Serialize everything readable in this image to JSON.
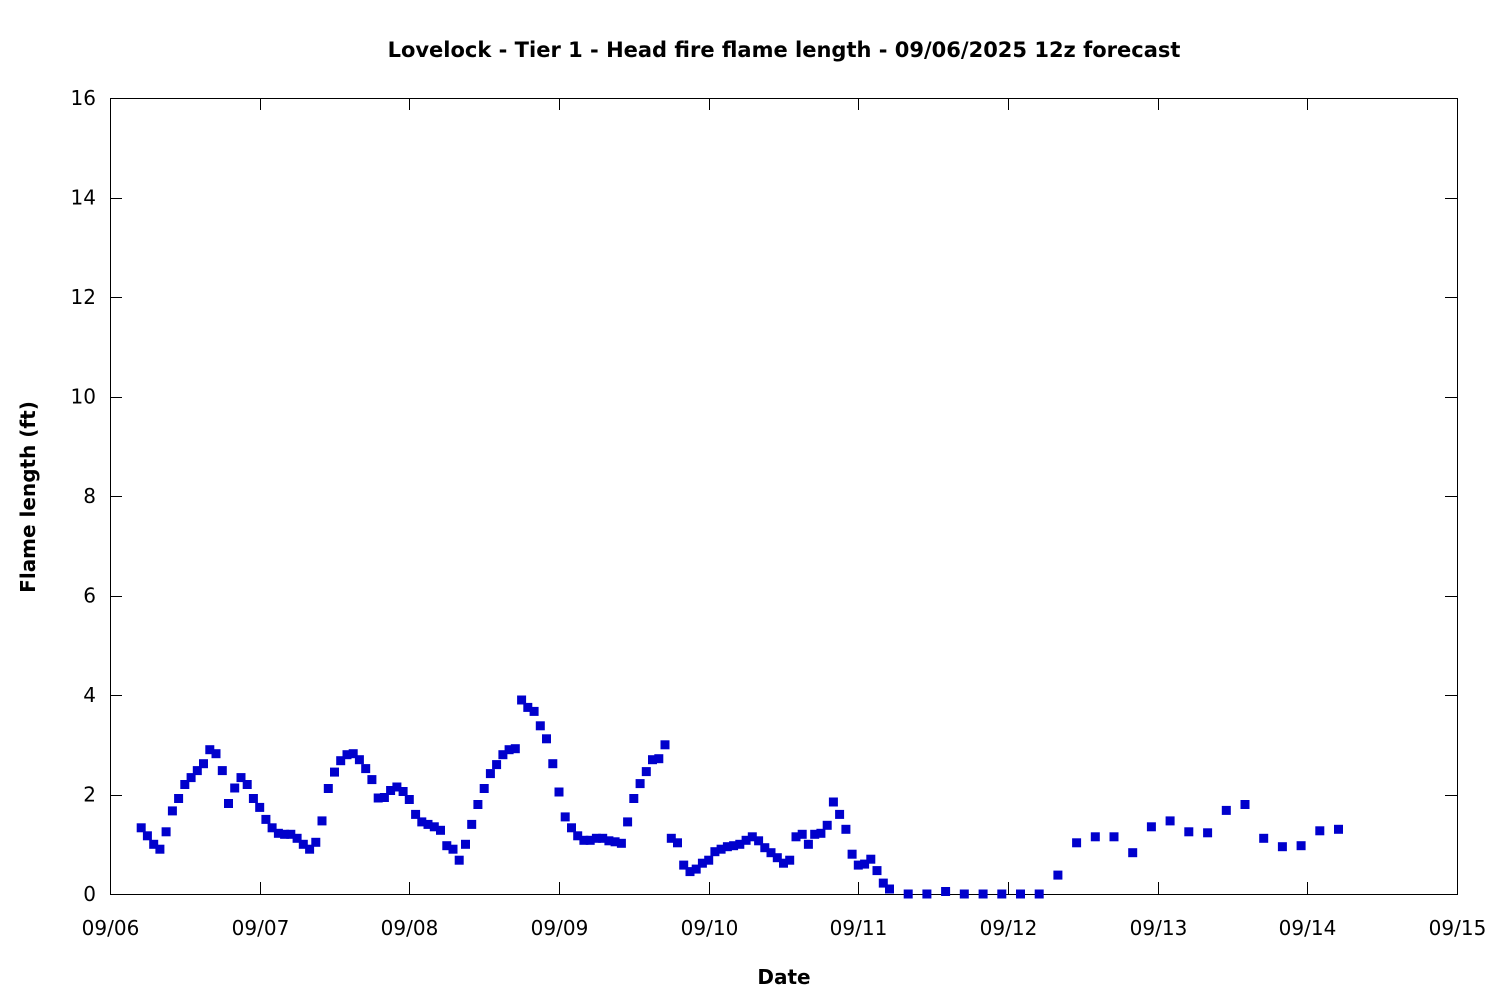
{
  "chart_data": {
    "type": "scatter",
    "title": "Lovelock - Tier 1 - Head fire flame length - 09/06/2025 12z forecast",
    "xlabel": "Date",
    "ylabel": "Flame length (ft)",
    "xlim": [
      "2025-09-06 00:00",
      "2025-09-15 00:00"
    ],
    "ylim": [
      0,
      16
    ],
    "x_ticks": [
      "09/06",
      "09/07",
      "09/08",
      "09/09",
      "09/10",
      "09/11",
      "09/12",
      "09/13",
      "09/14",
      "09/15"
    ],
    "y_ticks": [
      0,
      2,
      4,
      6,
      8,
      10,
      12,
      14,
      16
    ],
    "grid": false,
    "marker": "square",
    "marker_color": "#0000cc",
    "series": [
      {
        "points": [
          [
            "2025-09-06 05:00",
            1.33
          ],
          [
            "2025-09-06 06:00",
            1.17
          ],
          [
            "2025-09-06 07:00",
            1.0
          ],
          [
            "2025-09-06 08:00",
            0.9
          ],
          [
            "2025-09-06 09:00",
            1.25
          ],
          [
            "2025-09-06 10:00",
            1.67
          ],
          [
            "2025-09-06 11:00",
            1.92
          ],
          [
            "2025-09-06 12:00",
            2.2
          ],
          [
            "2025-09-06 13:00",
            2.34
          ],
          [
            "2025-09-06 14:00",
            2.48
          ],
          [
            "2025-09-06 15:00",
            2.62
          ],
          [
            "2025-09-06 16:00",
            2.9
          ],
          [
            "2025-09-06 17:00",
            2.82
          ],
          [
            "2025-09-06 18:00",
            2.48
          ],
          [
            "2025-09-06 19:00",
            1.82
          ],
          [
            "2025-09-06 20:00",
            2.13
          ],
          [
            "2025-09-06 21:00",
            2.34
          ],
          [
            "2025-09-06 22:00",
            2.2
          ],
          [
            "2025-09-06 23:00",
            1.92
          ],
          [
            "2025-09-07 00:00",
            1.74
          ],
          [
            "2025-09-07 01:00",
            1.5
          ],
          [
            "2025-09-07 02:00",
            1.33
          ],
          [
            "2025-09-07 03:00",
            1.22
          ],
          [
            "2025-09-07 04:00",
            1.2
          ],
          [
            "2025-09-07 05:00",
            1.2
          ],
          [
            "2025-09-07 06:00",
            1.12
          ],
          [
            "2025-09-07 07:00",
            1.0
          ],
          [
            "2025-09-07 08:00",
            0.9
          ],
          [
            "2025-09-07 09:00",
            1.04
          ],
          [
            "2025-09-07 10:00",
            1.47
          ],
          [
            "2025-09-07 11:00",
            2.12
          ],
          [
            "2025-09-07 12:00",
            2.45
          ],
          [
            "2025-09-07 13:00",
            2.68
          ],
          [
            "2025-09-07 14:00",
            2.8
          ],
          [
            "2025-09-07 15:00",
            2.82
          ],
          [
            "2025-09-07 16:00",
            2.7
          ],
          [
            "2025-09-07 17:00",
            2.52
          ],
          [
            "2025-09-07 18:00",
            2.3
          ],
          [
            "2025-09-07 19:00",
            1.93
          ],
          [
            "2025-09-07 20:00",
            1.94
          ],
          [
            "2025-09-07 21:00",
            2.08
          ],
          [
            "2025-09-07 22:00",
            2.15
          ],
          [
            "2025-09-07 23:00",
            2.06
          ],
          [
            "2025-09-08 00:00",
            1.9
          ],
          [
            "2025-09-08 01:00",
            1.6
          ],
          [
            "2025-09-08 02:00",
            1.45
          ],
          [
            "2025-09-08 03:00",
            1.4
          ],
          [
            "2025-09-08 04:00",
            1.35
          ],
          [
            "2025-09-08 05:00",
            1.28
          ],
          [
            "2025-09-08 06:00",
            0.97
          ],
          [
            "2025-09-08 07:00",
            0.9
          ],
          [
            "2025-09-08 08:00",
            0.68
          ],
          [
            "2025-09-08 09:00",
            1.0
          ],
          [
            "2025-09-08 10:00",
            1.4
          ],
          [
            "2025-09-08 11:00",
            1.8
          ],
          [
            "2025-09-08 12:00",
            2.12
          ],
          [
            "2025-09-08 13:00",
            2.42
          ],
          [
            "2025-09-08 14:00",
            2.6
          ],
          [
            "2025-09-08 15:00",
            2.8
          ],
          [
            "2025-09-08 16:00",
            2.9
          ],
          [
            "2025-09-08 17:00",
            2.92
          ],
          [
            "2025-09-08 18:00",
            3.9
          ],
          [
            "2025-09-08 19:00",
            3.75
          ],
          [
            "2025-09-08 20:00",
            3.67
          ],
          [
            "2025-09-08 21:00",
            3.38
          ],
          [
            "2025-09-08 22:00",
            3.12
          ],
          [
            "2025-09-08 23:00",
            2.62
          ],
          [
            "2025-09-09 00:00",
            2.05
          ],
          [
            "2025-09-09 01:00",
            1.55
          ],
          [
            "2025-09-09 02:00",
            1.33
          ],
          [
            "2025-09-09 03:00",
            1.17
          ],
          [
            "2025-09-09 04:00",
            1.08
          ],
          [
            "2025-09-09 05:00",
            1.08
          ],
          [
            "2025-09-09 06:00",
            1.12
          ],
          [
            "2025-09-09 07:00",
            1.12
          ],
          [
            "2025-09-09 08:00",
            1.07
          ],
          [
            "2025-09-09 09:00",
            1.05
          ],
          [
            "2025-09-09 10:00",
            1.02
          ],
          [
            "2025-09-09 11:00",
            1.45
          ],
          [
            "2025-09-09 12:00",
            1.92
          ],
          [
            "2025-09-09 13:00",
            2.22
          ],
          [
            "2025-09-09 14:00",
            2.46
          ],
          [
            "2025-09-09 15:00",
            2.7
          ],
          [
            "2025-09-09 16:00",
            2.72
          ],
          [
            "2025-09-09 17:00",
            3.0
          ],
          [
            "2025-09-09 18:00",
            1.12
          ],
          [
            "2025-09-09 19:00",
            1.03
          ],
          [
            "2025-09-09 20:00",
            0.58
          ],
          [
            "2025-09-09 21:00",
            0.45
          ],
          [
            "2025-09-09 22:00",
            0.5
          ],
          [
            "2025-09-09 23:00",
            0.62
          ],
          [
            "2025-09-10 00:00",
            0.68
          ],
          [
            "2025-09-10 01:00",
            0.85
          ],
          [
            "2025-09-10 02:00",
            0.9
          ],
          [
            "2025-09-10 03:00",
            0.95
          ],
          [
            "2025-09-10 04:00",
            0.97
          ],
          [
            "2025-09-10 05:00",
            1.0
          ],
          [
            "2025-09-10 06:00",
            1.08
          ],
          [
            "2025-09-10 07:00",
            1.15
          ],
          [
            "2025-09-10 08:00",
            1.07
          ],
          [
            "2025-09-10 09:00",
            0.93
          ],
          [
            "2025-09-10 10:00",
            0.83
          ],
          [
            "2025-09-10 11:00",
            0.73
          ],
          [
            "2025-09-10 12:00",
            0.62
          ],
          [
            "2025-09-10 13:00",
            0.68
          ],
          [
            "2025-09-10 14:00",
            1.15
          ],
          [
            "2025-09-10 15:00",
            1.2
          ],
          [
            "2025-09-10 16:00",
            1.0
          ],
          [
            "2025-09-10 17:00",
            1.2
          ],
          [
            "2025-09-10 18:00",
            1.22
          ],
          [
            "2025-09-10 19:00",
            1.38
          ],
          [
            "2025-09-10 20:00",
            1.85
          ],
          [
            "2025-09-10 21:00",
            1.6
          ],
          [
            "2025-09-10 22:00",
            1.3
          ],
          [
            "2025-09-10 23:00",
            0.8
          ],
          [
            "2025-09-11 00:00",
            0.58
          ],
          [
            "2025-09-11 01:00",
            0.6
          ],
          [
            "2025-09-11 02:00",
            0.7
          ],
          [
            "2025-09-11 03:00",
            0.47
          ],
          [
            "2025-09-11 04:00",
            0.22
          ],
          [
            "2025-09-11 05:00",
            0.1
          ],
          [
            "2025-09-11 08:00",
            0.0
          ],
          [
            "2025-09-11 11:00",
            0.0
          ],
          [
            "2025-09-11 14:00",
            0.05
          ],
          [
            "2025-09-11 17:00",
            0.0
          ],
          [
            "2025-09-11 20:00",
            0.0
          ],
          [
            "2025-09-11 23:00",
            0.0
          ],
          [
            "2025-09-12 02:00",
            0.0
          ],
          [
            "2025-09-12 05:00",
            0.0
          ],
          [
            "2025-09-12 08:00",
            0.38
          ],
          [
            "2025-09-12 11:00",
            1.03
          ],
          [
            "2025-09-12 14:00",
            1.15
          ],
          [
            "2025-09-12 17:00",
            1.15
          ],
          [
            "2025-09-12 20:00",
            0.83
          ],
          [
            "2025-09-12 23:00",
            1.35
          ],
          [
            "2025-09-13 02:00",
            1.47
          ],
          [
            "2025-09-13 05:00",
            1.25
          ],
          [
            "2025-09-13 08:00",
            1.23
          ],
          [
            "2025-09-13 11:00",
            1.68
          ],
          [
            "2025-09-13 14:00",
            1.8
          ],
          [
            "2025-09-13 17:00",
            1.12
          ],
          [
            "2025-09-13 20:00",
            0.95
          ],
          [
            "2025-09-13 23:00",
            0.97
          ],
          [
            "2025-09-14 02:00",
            1.27
          ],
          [
            "2025-09-14 05:00",
            1.3
          ]
        ]
      }
    ]
  }
}
